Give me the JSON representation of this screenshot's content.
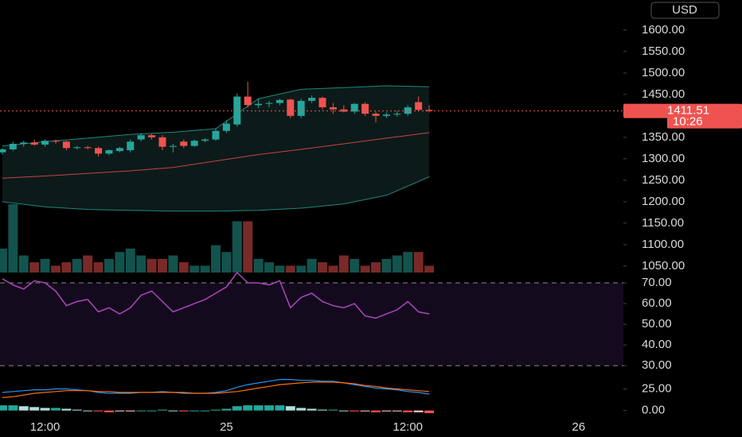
{
  "chart_data": [
    {
      "type": "candlestick",
      "currency": "USD",
      "x": [
        0,
        1,
        2,
        3,
        4,
        5,
        6,
        7,
        8,
        9,
        10,
        11,
        12,
        13,
        14,
        15,
        16,
        17,
        18,
        19,
        20,
        21,
        22,
        23,
        24,
        25,
        26,
        27,
        28,
        29,
        30,
        31,
        32,
        33,
        34,
        35,
        36,
        37,
        38,
        39,
        40
      ],
      "open": [
        1315,
        1322,
        1335,
        1338,
        1333,
        1342,
        1340,
        1325,
        1327,
        1325,
        1312,
        1318,
        1320,
        1345,
        1355,
        1350,
        1328,
        1340,
        1330,
        1342,
        1345,
        1365,
        1380,
        1445,
        1425,
        1428,
        1430,
        1438,
        1400,
        1435,
        1442,
        1420,
        1415,
        1410,
        1428,
        1405,
        1400,
        1403,
        1405,
        1432,
        1414
      ],
      "high": [
        1325,
        1340,
        1342,
        1345,
        1345,
        1345,
        1342,
        1330,
        1330,
        1328,
        1322,
        1328,
        1345,
        1360,
        1358,
        1355,
        1335,
        1345,
        1345,
        1348,
        1370,
        1390,
        1452,
        1480,
        1440,
        1435,
        1440,
        1440,
        1440,
        1448,
        1445,
        1430,
        1425,
        1430,
        1432,
        1410,
        1408,
        1412,
        1425,
        1445,
        1425
      ],
      "low": [
        1310,
        1318,
        1328,
        1330,
        1328,
        1335,
        1320,
        1322,
        1322,
        1305,
        1308,
        1315,
        1315,
        1340,
        1345,
        1320,
        1315,
        1325,
        1328,
        1338,
        1342,
        1360,
        1375,
        1420,
        1418,
        1420,
        1425,
        1395,
        1395,
        1430,
        1415,
        1405,
        1408,
        1405,
        1400,
        1385,
        1395,
        1398,
        1400,
        1412,
        1408
      ],
      "close": [
        1322,
        1335,
        1338,
        1333,
        1342,
        1340,
        1325,
        1327,
        1325,
        1312,
        1320,
        1325,
        1340,
        1355,
        1350,
        1328,
        1330,
        1330,
        1342,
        1345,
        1365,
        1382,
        1445,
        1425,
        1428,
        1430,
        1437,
        1400,
        1435,
        1442,
        1420,
        1415,
        1410,
        1428,
        1405,
        1400,
        1403,
        1405,
        1420,
        1414,
        1411.51
      ],
      "up_color": "#26a69a",
      "down_color": "#ef5350",
      "xlim": [
        -0.22,
        58.2
      ],
      "xticks": [
        {
          "value": 4,
          "label": "12:00"
        },
        {
          "value": 21,
          "label": "25"
        },
        {
          "value": 38,
          "label": "12:00"
        },
        {
          "value": 54,
          "label": "26"
        }
      ],
      "ylim": [
        1035,
        1670
      ],
      "yticks": [
        {
          "value": 1050,
          "label": "1050.00"
        },
        {
          "value": 1100,
          "label": "1100.00"
        },
        {
          "value": 1150,
          "label": "1150.00"
        },
        {
          "value": 1200,
          "label": "1200.00"
        },
        {
          "value": 1250,
          "label": "1250.00"
        },
        {
          "value": 1300,
          "label": "1300.00"
        },
        {
          "value": 1350,
          "label": "1350.00"
        },
        {
          "value": 1450,
          "label": "1450.00"
        },
        {
          "value": 1500,
          "label": "1500.00"
        },
        {
          "value": 1550,
          "label": "1550.00"
        },
        {
          "value": 1600,
          "label": "1600.00"
        }
      ],
      "last_price": {
        "value": 1411.51,
        "label": "1411.51"
      },
      "countdown": "10:26",
      "bands": {
        "x": [
          0,
          4,
          8,
          12,
          16,
          20,
          24,
          28,
          32,
          36,
          40
        ],
        "upper": [
          1330,
          1340,
          1348,
          1357,
          1362,
          1370,
          1440,
          1462,
          1466,
          1470,
          1468
        ],
        "middle": [
          1255,
          1260,
          1266,
          1272,
          1280,
          1295,
          1310,
          1322,
          1335,
          1348,
          1361
        ],
        "lower": [
          1200,
          1188,
          1182,
          1180,
          1178,
          1178,
          1180,
          1185,
          1195,
          1215,
          1258
        ],
        "color": "#26a69a",
        "middle_color": "#ef5350"
      },
      "volume": {
        "values": [
          35,
          100,
          25,
          15,
          20,
          10,
          15,
          20,
          25,
          15,
          20,
          30,
          35,
          25,
          20,
          20,
          25,
          15,
          10,
          10,
          40,
          30,
          75,
          75,
          20,
          15,
          10,
          10,
          10,
          20,
          15,
          10,
          25,
          20,
          10,
          15,
          20,
          25,
          30,
          30,
          10
        ],
        "ylim": [
          0,
          100
        ]
      }
    },
    {
      "type": "line",
      "x": [
        0,
        1,
        2,
        3,
        4,
        5,
        6,
        7,
        8,
        9,
        10,
        11,
        12,
        13,
        14,
        15,
        16,
        17,
        18,
        19,
        20,
        21,
        22,
        23,
        24,
        25,
        26,
        27,
        28,
        29,
        30,
        31,
        32,
        33,
        34,
        35,
        36,
        37,
        38,
        39,
        40
      ],
      "values": [
        72,
        69,
        67,
        71,
        70,
        66,
        59,
        61,
        62,
        56,
        58,
        55,
        58,
        64,
        66,
        61,
        56,
        58,
        60,
        62,
        65,
        68,
        75,
        70,
        70,
        69,
        71,
        58,
        63,
        65,
        61,
        59,
        58,
        60,
        54,
        53,
        55,
        57,
        61,
        56,
        55
      ],
      "color": "#ab47bc",
      "levels": [
        30,
        70
      ],
      "ylim": [
        27,
        75
      ],
      "yticks": [
        {
          "value": 30,
          "label": "30.00"
        },
        {
          "value": 40,
          "label": "40.00"
        },
        {
          "value": 50,
          "label": "50.00"
        },
        {
          "value": 60,
          "label": "60.00"
        },
        {
          "value": 70,
          "label": "70.00"
        }
      ]
    },
    {
      "type": "macd",
      "x": [
        0,
        1,
        2,
        3,
        4,
        5,
        6,
        7,
        8,
        9,
        10,
        11,
        12,
        13,
        14,
        15,
        16,
        17,
        18,
        19,
        20,
        21,
        22,
        23,
        24,
        25,
        26,
        27,
        28,
        29,
        30,
        31,
        32,
        33,
        34,
        35,
        36,
        37,
        38,
        39,
        40
      ],
      "macd": [
        21,
        22,
        23,
        24,
        24,
        25,
        25,
        24,
        23,
        21,
        20,
        20,
        20,
        21,
        21,
        22,
        21,
        20,
        20,
        20,
        21,
        23,
        27,
        30,
        32,
        34,
        36,
        36,
        35,
        35,
        34,
        34,
        32,
        30,
        28,
        26,
        25,
        24,
        22,
        21,
        19
      ],
      "signal": [
        15,
        16,
        18,
        20,
        21,
        22,
        23,
        23,
        23,
        22,
        22,
        21,
        21,
        21,
        21,
        21,
        21,
        21,
        20,
        20,
        20,
        21,
        22,
        24,
        26,
        28,
        30,
        31,
        32,
        33,
        33,
        33,
        32,
        31,
        29,
        28,
        26,
        25,
        24,
        23,
        22
      ],
      "histogram": [
        6,
        6,
        5,
        4,
        3,
        3,
        2,
        1,
        0,
        -1,
        -2,
        -1,
        -1,
        0,
        0,
        1,
        0,
        -1,
        0,
        0,
        1,
        2,
        5,
        6,
        6,
        6,
        6,
        5,
        3,
        2,
        1,
        1,
        0,
        -1,
        -1,
        -2,
        -1,
        -1,
        -2,
        -2,
        -3
      ],
      "macd_color": "#2196f3",
      "signal_color": "#ff6d00",
      "ylim": [
        -4,
        43
      ],
      "yticks": [
        {
          "value": 0,
          "label": "0.00"
        },
        {
          "value": 25,
          "label": "25.00"
        }
      ]
    }
  ]
}
